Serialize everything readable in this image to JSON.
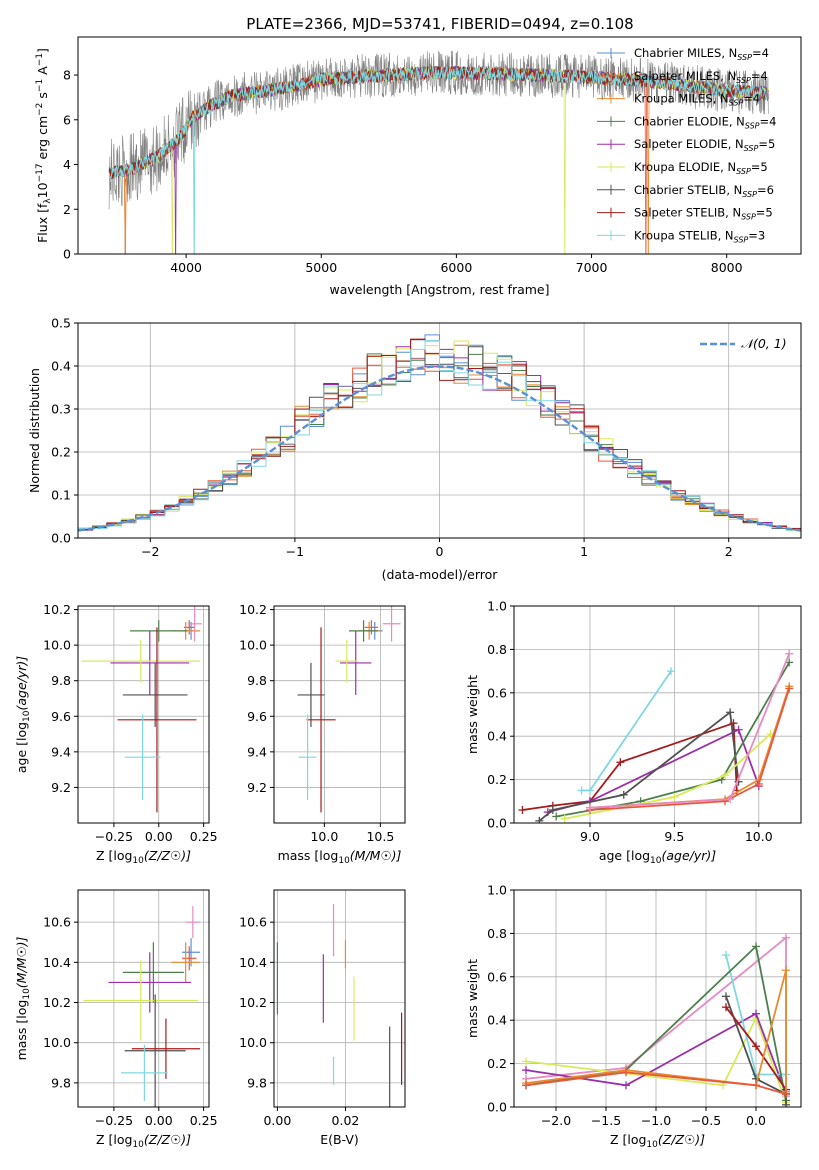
{
  "figure_title": "PLATE=2366, MJD=53741, FIBERID=0494, z=0.108",
  "colors": {
    "Chabrier MILES": "#5b8fd6",
    "Salpeter MILES": "#e8593c",
    "Kroupa MILES": "#e88a2e",
    "Chabrier ELODIE": "#4d7f4d",
    "Salpeter ELODIE": "#9b2fa8",
    "Kroupa ELODIE": "#d8ea5a",
    "Chabrier STELIB": "#505050",
    "Salpeter STELIB": "#a51b1b",
    "Kroupa STELIB": "#7fd8df",
    "pink": "#e78ac3",
    "gaussian": "#5b8fd6",
    "data": "#808080"
  },
  "chart_data": [
    {
      "id": "spectrum",
      "type": "line",
      "xlabel": "wavelength [Angstrom, rest frame]",
      "ylabel": "Flux [f$_\\lambda$10$^{-17}$ erg cm$^{-2}$ s$^{-1}$ A$^{-1}$]",
      "ylabel_parts": [
        "Flux [f",
        "λ",
        "10",
        "−17",
        " erg cm",
        "−2",
        " s",
        "−1",
        " A",
        "−1",
        "]"
      ],
      "xlim": [
        3200,
        8550
      ],
      "ylim": [
        0,
        9.7
      ],
      "xticks": [
        4000,
        5000,
        6000,
        7000,
        8000
      ],
      "yticks": [
        0,
        2,
        4,
        6,
        8
      ],
      "grid": false,
      "legend_position": "right",
      "legend": [
        {
          "name": "Chabrier MILES",
          "nssp": "4"
        },
        {
          "name": "Salpeter MILES",
          "nssp": "4"
        },
        {
          "name": "Kroupa MILES",
          "nssp": "4"
        },
        {
          "name": "Chabrier ELODIE",
          "nssp": "4"
        },
        {
          "name": "Salpeter ELODIE",
          "nssp": "5"
        },
        {
          "name": "Kroupa ELODIE",
          "nssp": "5"
        },
        {
          "name": "Chabrier STELIB",
          "nssp": "6"
        },
        {
          "name": "Salpeter STELIB",
          "nssp": "5"
        },
        {
          "name": "Kroupa STELIB",
          "nssp": "3"
        }
      ],
      "continuum_x": [
        3430,
        3600,
        3800,
        3950,
        4050,
        4200,
        4350,
        4600,
        4800,
        5000,
        5200,
        5500,
        5800,
        6000,
        6300,
        6600,
        7000,
        7300,
        7600,
        7800,
        8000,
        8300
      ],
      "continuum_y": [
        3.6,
        3.8,
        4.4,
        5.2,
        6.1,
        6.7,
        7.1,
        7.3,
        7.5,
        7.8,
        7.9,
        8.0,
        8.1,
        8.1,
        8.05,
        8.0,
        7.9,
        7.8,
        7.6,
        7.45,
        7.3,
        7.2
      ]
    },
    {
      "id": "residuals",
      "type": "line",
      "xlabel": "(data-model)/error",
      "ylabel": "Normed distribution",
      "xlim": [
        -2.5,
        2.5
      ],
      "ylim": [
        0,
        0.5
      ],
      "xticks": [
        -2,
        -1,
        0,
        1,
        2
      ],
      "xtick_labels": [
        "−2",
        "−1",
        "0",
        "1",
        "2"
      ],
      "yticks": [
        0.0,
        0.1,
        0.2,
        0.3,
        0.4,
        0.5
      ],
      "ytick_labels": [
        "0.0",
        "0.1",
        "0.2",
        "0.3",
        "0.4",
        "0.5"
      ],
      "grid": true,
      "legend_position": "top-right",
      "gaussian_label": "𝒩(0, 1)",
      "bin_width": 0.1
    },
    {
      "id": "z_vs_age",
      "type": "scatter",
      "xlabel": "Z [log10(Z/Z☉)]",
      "ylabel": "age  [log10(age/yr)]",
      "xlim": [
        -0.45,
        0.28
      ],
      "ylim": [
        9.0,
        10.22
      ],
      "xticks": [
        -0.25,
        0.0,
        0.25
      ],
      "xtick_labels": [
        "−0.25",
        "0.00",
        "0.25"
      ],
      "yticks": [
        9.2,
        9.4,
        9.6,
        9.8,
        10.0,
        10.2
      ],
      "ytick_labels": [
        "9.2",
        "9.4",
        "9.6",
        "9.8",
        "10.0",
        "10.2"
      ],
      "grid": true,
      "points": [
        {
          "c": "Chabrier MILES",
          "x": 0.18,
          "xe": 0.03,
          "y": 10.08,
          "ye": 0.05
        },
        {
          "c": "Salpeter MILES",
          "x": 0.17,
          "xe": 0.03,
          "y": 10.1,
          "ye": 0.04
        },
        {
          "c": "Kroupa MILES",
          "x": 0.15,
          "xe": 0.08,
          "y": 10.08,
          "ye": 0.05
        },
        {
          "c": "Chabrier ELODIE",
          "x": 0.0,
          "xe": 0.16,
          "y": 10.08,
          "ye": 0.06
        },
        {
          "c": "Salpeter ELODIE",
          "x": -0.05,
          "xe": 0.22,
          "y": 9.9,
          "ye": 0.18
        },
        {
          "c": "Kroupa ELODIE",
          "x": -0.1,
          "xe": 0.33,
          "y": 9.91,
          "ye": 0.12
        },
        {
          "c": "Chabrier STELIB",
          "x": -0.02,
          "xe": 0.18,
          "y": 9.72,
          "ye": 0.18
        },
        {
          "c": "Salpeter STELIB",
          "x": -0.01,
          "xe": 0.22,
          "y": 9.58,
          "ye": 0.52
        },
        {
          "c": "Kroupa STELIB",
          "x": -0.09,
          "xe": 0.1,
          "y": 9.37,
          "ye": 0.24
        },
        {
          "c": "pink",
          "x": 0.2,
          "xe": 0.04,
          "y": 10.12,
          "ye": 0.1
        }
      ]
    },
    {
      "id": "mass_vs_age",
      "type": "scatter",
      "xlabel": "mass [log10(M/M☉)]",
      "xlim": [
        9.55,
        10.72
      ],
      "ylim": [
        9.0,
        10.22
      ],
      "xticks": [
        10.0,
        10.5
      ],
      "xtick_labels": [
        "10.0",
        "10.5"
      ],
      "yticks": [
        9.2,
        9.4,
        9.6,
        9.8,
        10.0,
        10.2
      ],
      "ytick_labels": [
        "9.2",
        "9.4",
        "9.6",
        "9.8",
        "10.0",
        "10.2"
      ],
      "grid": true,
      "points": [
        {
          "c": "Chabrier MILES",
          "x": 10.45,
          "xe": 0.07,
          "y": 10.08,
          "ye": 0.05
        },
        {
          "c": "Salpeter MILES",
          "x": 10.42,
          "xe": 0.06,
          "y": 10.1,
          "ye": 0.04
        },
        {
          "c": "Kroupa MILES",
          "x": 10.4,
          "xe": 0.1,
          "y": 10.08,
          "ye": 0.05
        },
        {
          "c": "Chabrier ELODIE",
          "x": 10.35,
          "xe": 0.13,
          "y": 10.08,
          "ye": 0.06
        },
        {
          "c": "Salpeter ELODIE",
          "x": 10.28,
          "xe": 0.14,
          "y": 9.9,
          "ye": 0.18
        },
        {
          "c": "Kroupa ELODIE",
          "x": 10.2,
          "xe": 0.1,
          "y": 9.91,
          "ye": 0.12
        },
        {
          "c": "Chabrier STELIB",
          "x": 9.88,
          "xe": 0.12,
          "y": 9.72,
          "ye": 0.18
        },
        {
          "c": "Salpeter STELIB",
          "x": 9.97,
          "xe": 0.13,
          "y": 9.58,
          "ye": 0.52
        },
        {
          "c": "Kroupa STELIB",
          "x": 9.85,
          "xe": 0.08,
          "y": 9.37,
          "ye": 0.24
        },
        {
          "c": "pink",
          "x": 10.6,
          "xe": 0.08,
          "y": 10.12,
          "ye": 0.1
        }
      ]
    },
    {
      "id": "weights_vs_age",
      "type": "line",
      "xlabel": "age  [log10(age/yr)]",
      "ylabel": "mass weight",
      "xlim": [
        8.55,
        10.25
      ],
      "ylim": [
        0,
        1.0
      ],
      "xticks": [
        9.0,
        9.5,
        10.0
      ],
      "xtick_labels": [
        "9.0",
        "9.5",
        "10.0"
      ],
      "yticks": [
        0,
        0.2,
        0.4,
        0.6,
        0.8,
        1.0
      ],
      "ytick_labels": [
        "0.0",
        "0.2",
        "0.4",
        "0.6",
        "0.8",
        "1.0"
      ],
      "grid": true,
      "series": [
        {
          "c": "Kroupa STELIB",
          "x": [
            8.95,
            9.0,
            9.48
          ],
          "y": [
            0.15,
            0.15,
            0.7
          ]
        },
        {
          "c": "Salpeter STELIB",
          "x": [
            8.6,
            8.78,
            9.0,
            9.18,
            9.85,
            9.87
          ],
          "y": [
            0.06,
            0.08,
            0.1,
            0.28,
            0.46,
            0.15
          ]
        },
        {
          "c": "Salpeter ELODIE",
          "x": [
            8.75,
            9.0,
            9.88,
            10.0
          ],
          "y": [
            0.05,
            0.1,
            0.43,
            0.17
          ]
        },
        {
          "c": "Chabrier STELIB",
          "x": [
            8.7,
            8.78,
            9.2,
            9.83,
            9.88
          ],
          "y": [
            0.01,
            0.06,
            0.13,
            0.51,
            0.19
          ]
        },
        {
          "c": "Chabrier ELODIE",
          "x": [
            8.8,
            9.3,
            9.78,
            10.18
          ],
          "y": [
            0.03,
            0.1,
            0.2,
            0.74
          ]
        },
        {
          "c": "Kroupa ELODIE",
          "x": [
            8.85,
            9.5,
            9.8,
            10.07
          ],
          "y": [
            0.02,
            0.12,
            0.22,
            0.41
          ]
        },
        {
          "c": "Kroupa MILES",
          "x": [
            9.0,
            9.8,
            10.0,
            10.18
          ],
          "y": [
            0.07,
            0.11,
            0.2,
            0.63
          ]
        },
        {
          "c": "Salpeter MILES",
          "x": [
            9.0,
            9.8,
            10.0,
            10.18
          ],
          "y": [
            0.06,
            0.1,
            0.18,
            0.62
          ]
        },
        {
          "c": "pink",
          "x": [
            9.0,
            9.83,
            10.18
          ],
          "y": [
            0.07,
            0.11,
            0.78
          ]
        }
      ]
    },
    {
      "id": "z_vs_mass",
      "type": "scatter",
      "xlabel": "Z [log10(Z/Z☉)]",
      "ylabel": "mass [log10(M/M☉)]",
      "xlim": [
        -0.45,
        0.28
      ],
      "ylim": [
        9.68,
        10.76
      ],
      "xticks": [
        -0.25,
        0.0,
        0.25
      ],
      "xtick_labels": [
        "−0.25",
        "0.00",
        "0.25"
      ],
      "yticks": [
        9.8,
        10.0,
        10.2,
        10.4,
        10.6
      ],
      "ytick_labels": [
        "9.8",
        "10.0",
        "10.2",
        "10.4",
        "10.6"
      ],
      "grid": true,
      "points": [
        {
          "c": "Chabrier MILES",
          "x": 0.18,
          "xe": 0.05,
          "y": 10.45,
          "ye": 0.07
        },
        {
          "c": "Salpeter MILES",
          "x": 0.17,
          "xe": 0.04,
          "y": 10.42,
          "ye": 0.06
        },
        {
          "c": "Kroupa MILES",
          "x": 0.15,
          "xe": 0.08,
          "y": 10.4,
          "ye": 0.1
        },
        {
          "c": "Chabrier ELODIE",
          "x": -0.03,
          "xe": 0.17,
          "y": 10.35,
          "ye": 0.15
        },
        {
          "c": "Salpeter ELODIE",
          "x": -0.05,
          "xe": 0.23,
          "y": 10.3,
          "ye": 0.15
        },
        {
          "c": "Kroupa ELODIE",
          "x": -0.1,
          "xe": 0.32,
          "y": 10.21,
          "ye": 0.2
        },
        {
          "c": "Chabrier STELIB",
          "x": -0.02,
          "xe": 0.17,
          "y": 9.96,
          "ye": 0.28
        },
        {
          "c": "Salpeter STELIB",
          "x": 0.04,
          "xe": 0.19,
          "y": 9.97,
          "ye": 0.15
        },
        {
          "c": "Kroupa STELIB",
          "x": -0.08,
          "xe": 0.13,
          "y": 9.85,
          "ye": 0.14
        },
        {
          "c": "pink",
          "x": 0.19,
          "xe": 0.04,
          "y": 10.6,
          "ye": 0.08
        }
      ]
    },
    {
      "id": "ebv_vs_mass",
      "type": "scatter",
      "xlabel": "E(B-V)",
      "xlim": [
        -0.001,
        0.0375
      ],
      "ylim": [
        9.68,
        10.76
      ],
      "xticks": [
        0.0,
        0.02
      ],
      "xtick_labels": [
        "0.00",
        "0.02"
      ],
      "yticks": [
        9.8,
        10.0,
        10.2,
        10.4,
        10.6
      ],
      "ytick_labels": [
        "9.8",
        "10.0",
        "10.2",
        "10.4",
        "10.6"
      ],
      "grid": true,
      "points": [
        {
          "c": "Chabrier ELODIE",
          "x": 0.0,
          "y": 10.32,
          "ye": 0.18
        },
        {
          "c": "Salpeter ELODIE",
          "x": 0.0135,
          "y": 10.27,
          "ye": 0.17
        },
        {
          "c": "pink",
          "x": 0.0165,
          "y": 10.56,
          "ye": 0.13
        },
        {
          "c": "Kroupa STELIB",
          "x": 0.0165,
          "y": 9.86,
          "ye": 0.07
        },
        {
          "c": "Kroupa MILES",
          "x": 0.02,
          "y": 10.44,
          "ye": 0.07
        },
        {
          "c": "Kroupa ELODIE",
          "x": 0.0225,
          "y": 10.17,
          "ye": 0.16
        },
        {
          "c": "Chabrier STELIB",
          "x": 0.033,
          "y": 9.88,
          "ye": 0.2
        },
        {
          "c": "Salpeter STELIB",
          "x": 0.0365,
          "y": 9.97,
          "ye": 0.18
        }
      ]
    },
    {
      "id": "weights_vs_z",
      "type": "line",
      "xlabel": "Z [log10(Z/Z☉)]",
      "ylabel": "mass weight",
      "xlim": [
        -2.42,
        0.45
      ],
      "ylim": [
        0,
        1.0
      ],
      "xticks": [
        -2.0,
        -1.5,
        -1.0,
        -0.5,
        0.0
      ],
      "xtick_labels": [
        "−2.0",
        "−1.5",
        "−1.0",
        "−0.5",
        "0.0"
      ],
      "yticks": [
        0,
        0.2,
        0.4,
        0.6,
        0.8,
        1.0
      ],
      "ytick_labels": [
        "0.0",
        "0.2",
        "0.4",
        "0.6",
        "0.8",
        "1.0"
      ],
      "grid": true,
      "series": [
        {
          "c": "pink",
          "x": [
            -2.3,
            -1.3,
            0.3,
            0.3
          ],
          "y": [
            0.13,
            0.18,
            0.78,
            0.05
          ]
        },
        {
          "c": "Kroupa ELODIE",
          "x": [
            -2.3,
            -0.33,
            0.0,
            0.3
          ],
          "y": [
            0.21,
            0.1,
            0.41,
            0.02
          ]
        },
        {
          "c": "Salpeter ELODIE",
          "x": [
            -2.3,
            -1.3,
            0.0,
            0.3
          ],
          "y": [
            0.17,
            0.1,
            0.43,
            0.06
          ]
        },
        {
          "c": "Kroupa STELIB",
          "x": [
            -0.3,
            0.0,
            0.3
          ],
          "y": [
            0.7,
            0.15,
            0.15
          ]
        },
        {
          "c": "Chabrier ELODIE",
          "x": [
            -2.3,
            -1.3,
            0.0,
            0.3
          ],
          "y": [
            0.1,
            0.17,
            0.74,
            0.03
          ]
        },
        {
          "c": "Chabrier STELIB",
          "x": [
            -0.3,
            0.0,
            0.3,
            0.3
          ],
          "y": [
            0.51,
            0.13,
            0.06,
            0.01
          ]
        },
        {
          "c": "Salpeter STELIB",
          "x": [
            -0.3,
            0.0,
            0.3,
            0.3
          ],
          "y": [
            0.46,
            0.28,
            0.08,
            0.06
          ]
        },
        {
          "c": "Kroupa MILES",
          "x": [
            -2.3,
            -1.3,
            0.0,
            0.3,
            0.3
          ],
          "y": [
            0.11,
            0.17,
            0.1,
            0.63,
            0.07
          ]
        },
        {
          "c": "Salpeter MILES",
          "x": [
            -2.3,
            -1.3,
            0.0,
            0.3
          ],
          "y": [
            0.1,
            0.16,
            0.1,
            0.06
          ]
        }
      ]
    }
  ]
}
